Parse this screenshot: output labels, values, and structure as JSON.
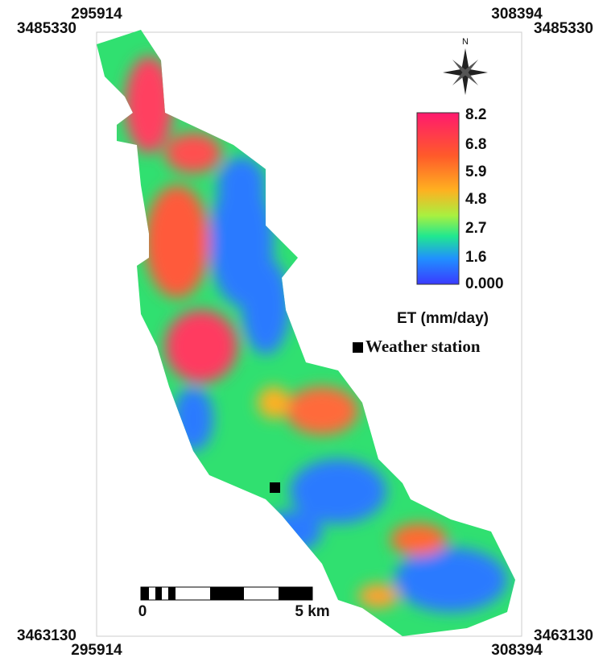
{
  "corners": {
    "top_left_x": "295914",
    "top_left_y": "3485330",
    "top_right_x": "308394",
    "top_right_y": "3485330",
    "bottom_left_y": "3463130",
    "bottom_left_x": "295914",
    "bottom_right_y": "3463130",
    "bottom_right_x": "308394"
  },
  "north": "N",
  "legend": {
    "ticks": [
      "8.2",
      "6.8",
      "5.9",
      "4.8",
      "2.7",
      "1.6",
      "0.000"
    ],
    "title": "ET (mm/day)",
    "station": "Weather station"
  },
  "scale": {
    "start": "0",
    "end": "5 km"
  }
}
